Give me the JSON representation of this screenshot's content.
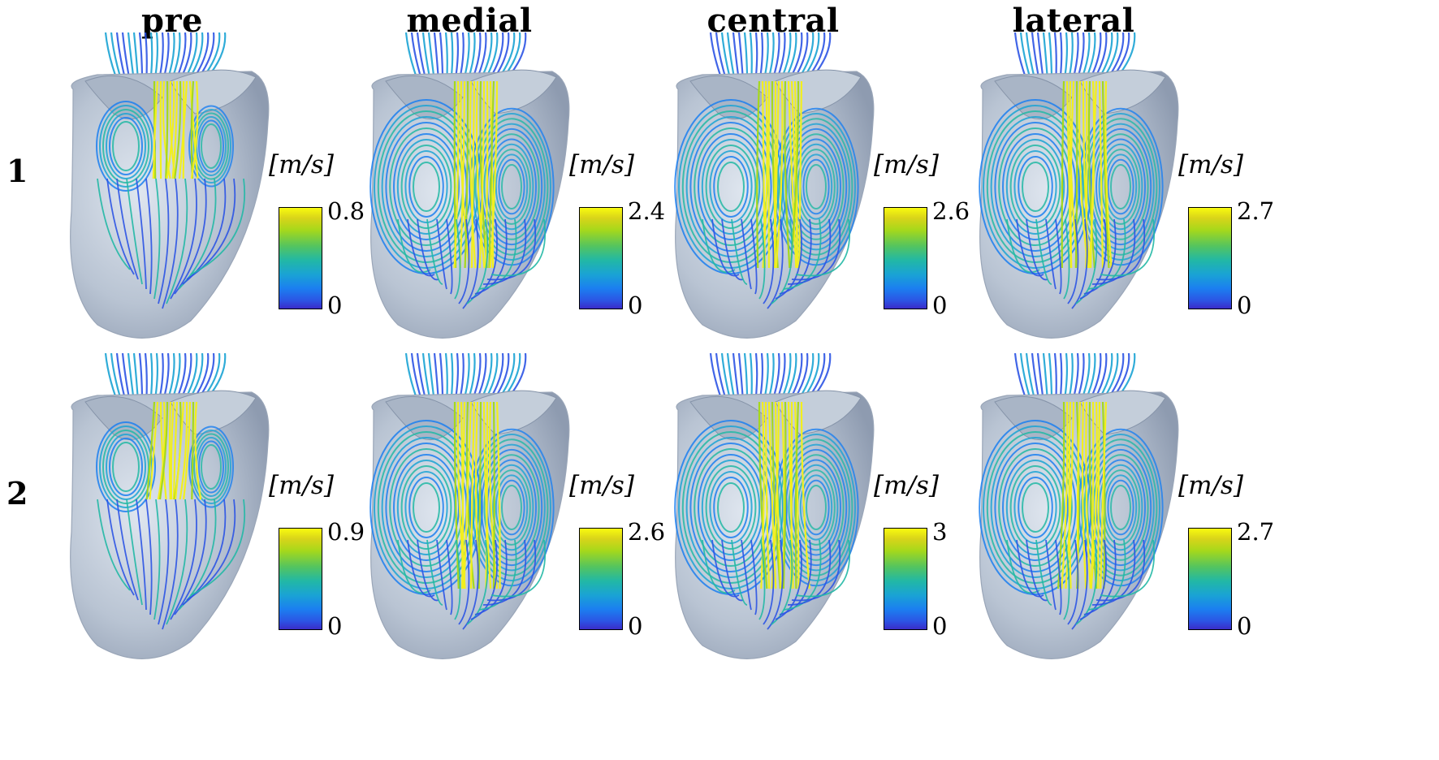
{
  "columns": [
    "pre",
    "medial",
    "central",
    "lateral"
  ],
  "rows": [
    "1",
    "2"
  ],
  "unit_label": "[m/s]",
  "colorbars": [
    [
      {
        "max": "0.8",
        "min": "0"
      },
      {
        "max": "2.4",
        "min": "0"
      },
      {
        "max": "2.6",
        "min": "0"
      },
      {
        "max": "2.7",
        "min": "0"
      }
    ],
    [
      {
        "max": "0.9",
        "min": "0"
      },
      {
        "max": "2.6",
        "min": "0"
      },
      {
        "max": "3",
        "min": "0"
      },
      {
        "max": "2.7",
        "min": "0"
      }
    ]
  ],
  "colors": {
    "surface": "#b9c4d3",
    "surface_shadow": "#8e9bb0",
    "colormap_high": "#f9fb0e",
    "colormap_mid": "#22b8a5",
    "colormap_low": "#3a2cc8"
  }
}
